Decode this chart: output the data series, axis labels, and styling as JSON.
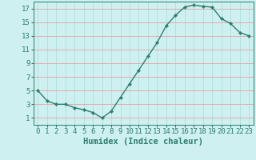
{
  "x": [
    0,
    1,
    2,
    3,
    4,
    5,
    6,
    7,
    8,
    9,
    10,
    11,
    12,
    13,
    14,
    15,
    16,
    17,
    18,
    19,
    20,
    21,
    22,
    23
  ],
  "y": [
    5,
    3.5,
    3,
    3,
    2.5,
    2.2,
    1.8,
    1,
    2,
    4,
    6,
    8,
    10,
    12,
    14.5,
    16,
    17.2,
    17.5,
    17.3,
    17.2,
    15.5,
    14.8,
    13.5,
    13
  ],
  "line_color": "#2e7d6e",
  "marker": "D",
  "marker_size": 2.2,
  "bg_color": "#cef0f0",
  "grid_color_h": "#e8a0a0",
  "grid_color_v": "#b0dede",
  "xlabel": "Humidex (Indice chaleur)",
  "xlabel_fontsize": 7.5,
  "ylim": [
    0,
    18
  ],
  "xlim": [
    -0.5,
    23.5
  ],
  "yticks": [
    1,
    3,
    5,
    7,
    9,
    11,
    13,
    15,
    17
  ],
  "xticks": [
    0,
    1,
    2,
    3,
    4,
    5,
    6,
    7,
    8,
    9,
    10,
    11,
    12,
    13,
    14,
    15,
    16,
    17,
    18,
    19,
    20,
    21,
    22,
    23
  ],
  "xtick_labels": [
    "0",
    "1",
    "2",
    "3",
    "4",
    "5",
    "6",
    "7",
    "8",
    "9",
    "10",
    "11",
    "12",
    "13",
    "14",
    "15",
    "16",
    "17",
    "18",
    "19",
    "20",
    "21",
    "22",
    "23"
  ],
  "tick_color": "#2e7d6e",
  "tick_fontsize": 6.5,
  "line_width": 1.0
}
